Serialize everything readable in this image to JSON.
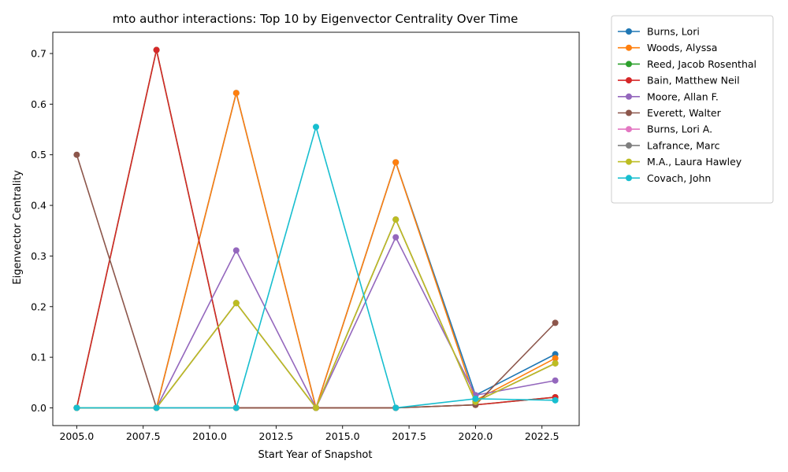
{
  "chart_data": {
    "type": "line",
    "title": "mto author interactions: Top 10 by Eigenvector Centrality Over Time",
    "xlabel": "Start Year of Snapshot",
    "ylabel": "Eigenvector Centrality",
    "xlim": [
      2004.1,
      2023.9
    ],
    "ylim": [
      -0.035,
      0.742
    ],
    "xticks": [
      2005.0,
      2007.5,
      2010.0,
      2012.5,
      2015.0,
      2017.5,
      2020.0,
      2022.5
    ],
    "xtick_labels": [
      "2005.0",
      "2007.5",
      "2010.0",
      "2012.5",
      "2015.0",
      "2017.5",
      "2020.0",
      "2022.5"
    ],
    "yticks": [
      0.0,
      0.1,
      0.2,
      0.3,
      0.4,
      0.5,
      0.6,
      0.7
    ],
    "ytick_labels": [
      "0.0",
      "0.1",
      "0.2",
      "0.3",
      "0.4",
      "0.5",
      "0.6",
      "0.7"
    ],
    "grid": false,
    "legend_position": "outside-top-right",
    "x": [
      2005,
      2008,
      2011,
      2014,
      2017,
      2020,
      2023
    ],
    "series": [
      {
        "name": "Burns, Lori",
        "color": "#1f77b4",
        "values": [
          0.0,
          0.0,
          0.622,
          0.0,
          0.485,
          0.025,
          0.106
        ]
      },
      {
        "name": "Woods, Alyssa",
        "color": "#ff7f0e",
        "values": [
          0.0,
          0.0,
          0.622,
          0.0,
          0.485,
          0.015,
          0.098
        ]
      },
      {
        "name": "Reed, Jacob Rosenthal",
        "color": "#2ca02c",
        "values": [
          0.0,
          0.707,
          0.0,
          0.0,
          0.0,
          0.006,
          0.021
        ]
      },
      {
        "name": "Bain, Matthew Neil",
        "color": "#d62728",
        "values": [
          0.0,
          0.707,
          0.0,
          0.0,
          0.0,
          0.006,
          0.021
        ]
      },
      {
        "name": "Moore, Allan F.",
        "color": "#9467bd",
        "values": [
          0.0,
          0.0,
          0.311,
          0.0,
          0.337,
          0.025,
          0.054
        ]
      },
      {
        "name": "Everett, Walter",
        "color": "#8c564b",
        "values": [
          0.5,
          0.0,
          0.0,
          0.0,
          0.0,
          0.006,
          0.168
        ]
      },
      {
        "name": "Burns, Lori A.",
        "color": "#e377c2",
        "values": [
          0.0,
          0.0,
          0.207,
          0.0,
          0.372,
          0.012,
          0.088
        ]
      },
      {
        "name": "Lafrance, Marc",
        "color": "#7f7f7f",
        "values": [
          0.0,
          0.0,
          0.207,
          0.0,
          0.372,
          0.012,
          0.088
        ]
      },
      {
        "name": "M.A., Laura Hawley",
        "color": "#bcbd22",
        "values": [
          0.0,
          0.0,
          0.207,
          0.0,
          0.372,
          0.012,
          0.088
        ]
      },
      {
        "name": "Covach, John",
        "color": "#17becf",
        "values": [
          0.0,
          0.0,
          0.0,
          0.555,
          0.0,
          0.018,
          0.015
        ]
      }
    ]
  }
}
